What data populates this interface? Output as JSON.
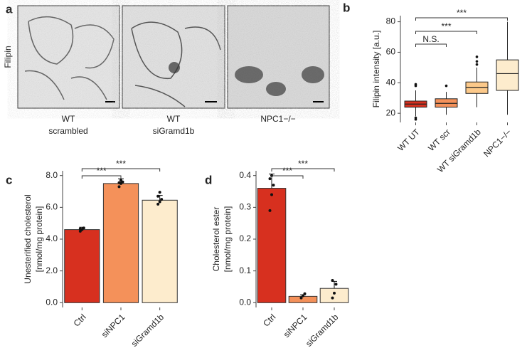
{
  "panel_letters": [
    "a",
    "b",
    "c",
    "d"
  ],
  "images": {
    "row_label": "Filipin",
    "captions": [
      [
        "WT",
        "scrambled"
      ],
      [
        "WT",
        "siGramd1b"
      ],
      [
        "NPC1−/−"
      ]
    ]
  },
  "chart_data": [
    {
      "type": "box",
      "ylabel": "Filipin intensity [a.u.]",
      "categories": [
        "WT UT",
        "WT scr",
        "WT siGramd1b",
        "NPC1−/−"
      ],
      "colors": [
        "#d7301f",
        "#f4915a",
        "#fcc98a",
        "#fdeccd"
      ],
      "boxes": [
        {
          "whislo": 18,
          "q1": 24,
          "med": 26,
          "q3": 28,
          "whishi": 35,
          "fliers": [
            16,
            17,
            38,
            39
          ]
        },
        {
          "whislo": 19,
          "q1": 24,
          "med": 26.5,
          "q3": 29.5,
          "whishi": 34,
          "fliers": [
            38
          ]
        },
        {
          "whislo": 24,
          "q1": 33,
          "med": 37,
          "q3": 40.5,
          "whishi": 50,
          "fliers": [
            52,
            54,
            57
          ]
        },
        {
          "whislo": 19,
          "q1": 35,
          "med": 46,
          "q3": 55,
          "whishi": 80,
          "fliers": []
        }
      ],
      "ylim": [
        14,
        84
      ],
      "yticks": [
        20,
        40,
        60,
        80
      ],
      "annotations": [
        "N.S.",
        "***",
        "***"
      ]
    },
    {
      "type": "bar",
      "ylabel": [
        "Unesterified cholesterol",
        "[nmol/mg protein]"
      ],
      "categories": [
        "Ctrl",
        "siNPC1",
        "siGramd1b"
      ],
      "colors": [
        "#d7301f",
        "#f4915a",
        "#fdeccd"
      ],
      "values": [
        4.6,
        7.5,
        6.45
      ],
      "errors": [
        0.15,
        0.3,
        0.3
      ],
      "points": [
        [
          4.5,
          4.6,
          4.7,
          4.65
        ],
        [
          7.3,
          7.5,
          7.6,
          7.55,
          7.7
        ],
        [
          6.2,
          6.35,
          6.5,
          6.7,
          6.95
        ]
      ],
      "ylim": [
        -0.3,
        8.3
      ],
      "yticks": [
        {
          "value": 0,
          "label": "0.0"
        },
        {
          "value": 2,
          "label": "2.0"
        },
        {
          "value": 4,
          "label": "4.0"
        },
        {
          "value": 6,
          "label": "6.0"
        },
        {
          "value": 8,
          "label": "8.0"
        }
      ],
      "annotations": [
        "***",
        "***"
      ]
    },
    {
      "type": "bar",
      "ylabel": [
        "Cholesterol ester",
        "[nmol/mg protein]"
      ],
      "categories": [
        "Ctrl",
        "siNPC1",
        "siGramd1b"
      ],
      "colors": [
        "#d7301f",
        "#f4915a",
        "#fdeccd"
      ],
      "values": [
        0.36,
        0.02,
        0.045
      ],
      "errors": [
        0.045,
        0.005,
        0.022
      ],
      "points": [
        [
          0.29,
          0.34,
          0.37,
          0.39,
          0.4
        ],
        [
          0.015,
          0.022,
          0.028
        ],
        [
          0.015,
          0.03,
          0.058,
          0.07
        ]
      ],
      "ylim": [
        -0.015,
        0.415
      ],
      "yticks": [
        {
          "value": 0,
          "label": "0.0"
        },
        {
          "value": 0.1,
          "label": "0.1"
        },
        {
          "value": 0.2,
          "label": "0.2"
        },
        {
          "value": 0.3,
          "label": "0.3"
        },
        {
          "value": 0.4,
          "label": "0.4"
        }
      ],
      "annotations": [
        "***",
        "***"
      ]
    }
  ]
}
